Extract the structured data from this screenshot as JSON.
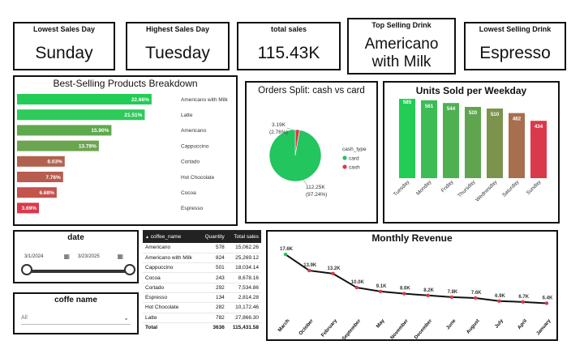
{
  "kpis": {
    "lowest_day_title": "Lowest Sales Day",
    "lowest_day_value": "Sunday",
    "highest_day_title": "Highest Sales Day",
    "highest_day_value": "Tuesday",
    "total_sales_title": "total sales",
    "total_sales_value": "115.43K",
    "top_drink_title": "Top Selling Drink",
    "top_drink_value": "Americano with Milk",
    "lowest_drink_title": "Lowest Selling Drink",
    "lowest_drink_value": "Espresso"
  },
  "date_filter": {
    "title": "date",
    "start": "3/1/2024",
    "end": "3/23/2025",
    "icon": "calendar-icon"
  },
  "coffee_filter": {
    "title": "coffe name",
    "selected": "All",
    "icon": "chevron-down-icon"
  },
  "table": {
    "headers": [
      "coffee_name",
      "Quantity",
      "Total sales"
    ],
    "rows": [
      [
        "Americano",
        "578",
        "15,062.26"
      ],
      [
        "Americano with Milk",
        "824",
        "25,269.12"
      ],
      [
        "Cappuccino",
        "501",
        "18,034.14"
      ],
      [
        "Cocoa",
        "243",
        "8,678.16"
      ],
      [
        "Cortado",
        "292",
        "7,534.86"
      ],
      [
        "Espresso",
        "134",
        "2,814.28"
      ],
      [
        "Hot Chocolate",
        "282",
        "10,172.46"
      ],
      [
        "Latte",
        "782",
        "27,866.30"
      ]
    ],
    "total": [
      "Total",
      "3636",
      "115,431.58"
    ]
  },
  "colors": {
    "green": "#22c55e",
    "red": "#d9394a"
  },
  "chart_data": [
    {
      "type": "bar",
      "orientation": "horizontal",
      "title": "Best-Selling Products Breakdown",
      "categories": [
        "Americano with Milk",
        "Latte",
        "Americano",
        "Cappuccino",
        "Cortado",
        "Hot Chocolate",
        "Cocoa",
        "Espresso"
      ],
      "values": [
        22.66,
        21.51,
        15.9,
        13.78,
        8.03,
        7.76,
        6.68,
        3.69
      ],
      "labels": [
        "22.66%",
        "21.51%",
        "15.90%",
        "13.78%",
        "8.03%",
        "7.76%",
        "6.68%",
        "3.69%"
      ],
      "colors": [
        "#22cc55",
        "#2ecb5a",
        "#5ea84d",
        "#6ba54f",
        "#b0624f",
        "#b75c4f",
        "#c4524d",
        "#d9394a"
      ],
      "xlim": [
        0,
        25
      ]
    },
    {
      "type": "pie",
      "title": "Orders Split: cash vs card",
      "legend_title": "cash_type",
      "slices": [
        {
          "name": "card",
          "value": 112.25,
          "label_value": "112.25K",
          "label_pct": "(97.24%)",
          "color": "#22c55e"
        },
        {
          "name": "cash",
          "value": 3.19,
          "label_value": "3.19K",
          "label_pct": "(2.76%)",
          "color": "#d9394a"
        }
      ],
      "legend_position": "right"
    },
    {
      "type": "bar",
      "title": "Units Sold per Weekday",
      "categories": [
        "Tuesday",
        "Monday",
        "Friday",
        "Thursday",
        "Wednesday",
        "Saturday",
        "Sunday"
      ],
      "values": [
        585,
        561,
        544,
        520,
        510,
        482,
        434
      ],
      "colors": [
        "#22cc55",
        "#3dbb55",
        "#4fb052",
        "#5fa54f",
        "#7c934d",
        "#a76f4d",
        "#d9394a"
      ],
      "ylim": [
        0,
        650
      ]
    },
    {
      "type": "line",
      "title": "Monthly Revenue",
      "categories": [
        "March",
        "October",
        "February",
        "September",
        "May",
        "November",
        "December",
        "June",
        "August",
        "July",
        "April",
        "January"
      ],
      "values": [
        17.6,
        13.9,
        13.2,
        10.0,
        9.1,
        8.6,
        8.2,
        7.8,
        7.6,
        6.9,
        6.7,
        6.4
      ],
      "labels": [
        "17.6K",
        "13.9K",
        "13.2K",
        "10.0K",
        "9.1K",
        "8.6K",
        "8.2K",
        "7.8K",
        "7.6K",
        "6.9K",
        "6.7K",
        "6.4K"
      ],
      "line_color": "#111111",
      "marker_colors": [
        "#22c55e",
        "#d9394a"
      ],
      "ylim": [
        5,
        18
      ]
    }
  ]
}
